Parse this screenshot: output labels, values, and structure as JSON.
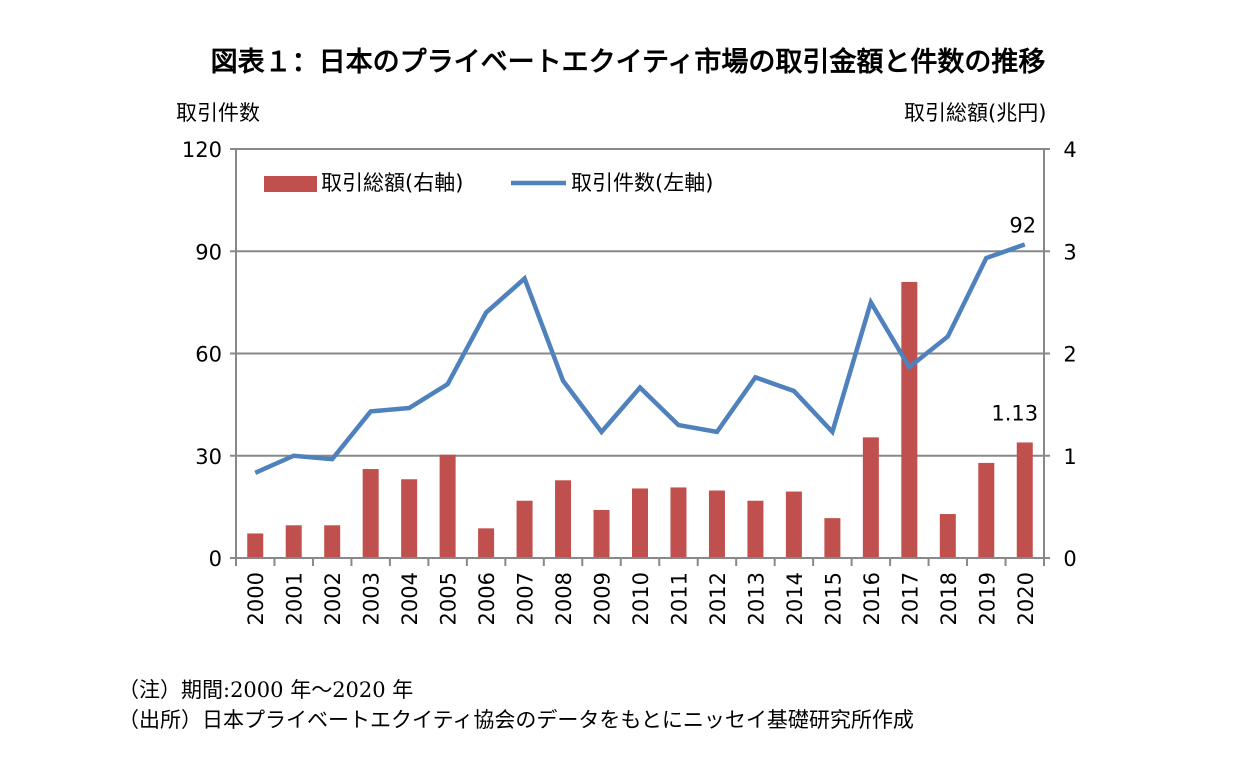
{
  "chart_data": {
    "type": "bar+line",
    "title": "図表１：日本のプライベートエクイティ市場の取引金額と件数の推移",
    "ylabel_left": "取引件数",
    "ylabel_right": "取引総額(兆円)",
    "ylim_left": [
      0,
      120
    ],
    "yticks_left": [
      "0",
      "30",
      "60",
      "90",
      "120"
    ],
    "ylim_right": [
      0,
      4
    ],
    "yticks_right": [
      "0",
      "1",
      "2",
      "3",
      "4"
    ],
    "grid": true,
    "legend_position": "top-left",
    "categories": [
      "2000",
      "2001",
      "2002",
      "2003",
      "2004",
      "2005",
      "2006",
      "2007",
      "2008",
      "2009",
      "2010",
      "2011",
      "2012",
      "2013",
      "2014",
      "2015",
      "2016",
      "2017",
      "2018",
      "2019",
      "2020"
    ],
    "series": [
      {
        "name": "取引総額(右軸)",
        "type": "bar",
        "axis": "right",
        "color": "#c0504d",
        "values": [
          0.24,
          0.32,
          0.32,
          0.87,
          0.77,
          1.01,
          0.29,
          0.56,
          0.76,
          0.47,
          0.68,
          0.69,
          0.66,
          0.56,
          0.65,
          0.39,
          1.18,
          2.7,
          0.43,
          0.93,
          1.13
        ]
      },
      {
        "name": "取引件数(左軸)",
        "type": "line",
        "axis": "left",
        "color": "#4f81bd",
        "values": [
          25,
          30,
          29,
          43,
          44,
          51,
          72,
          82,
          52,
          37,
          50,
          39,
          37,
          53,
          49,
          37,
          75,
          56,
          65,
          88,
          92
        ]
      }
    ],
    "annotations": [
      "92",
      "1.13"
    ]
  },
  "notes": {
    "period": "（注）期間:2000 年～2020 年",
    "source": "（出所）日本プライベートエクイティ協会のデータをもとにニッセイ基礎研究所作成"
  }
}
